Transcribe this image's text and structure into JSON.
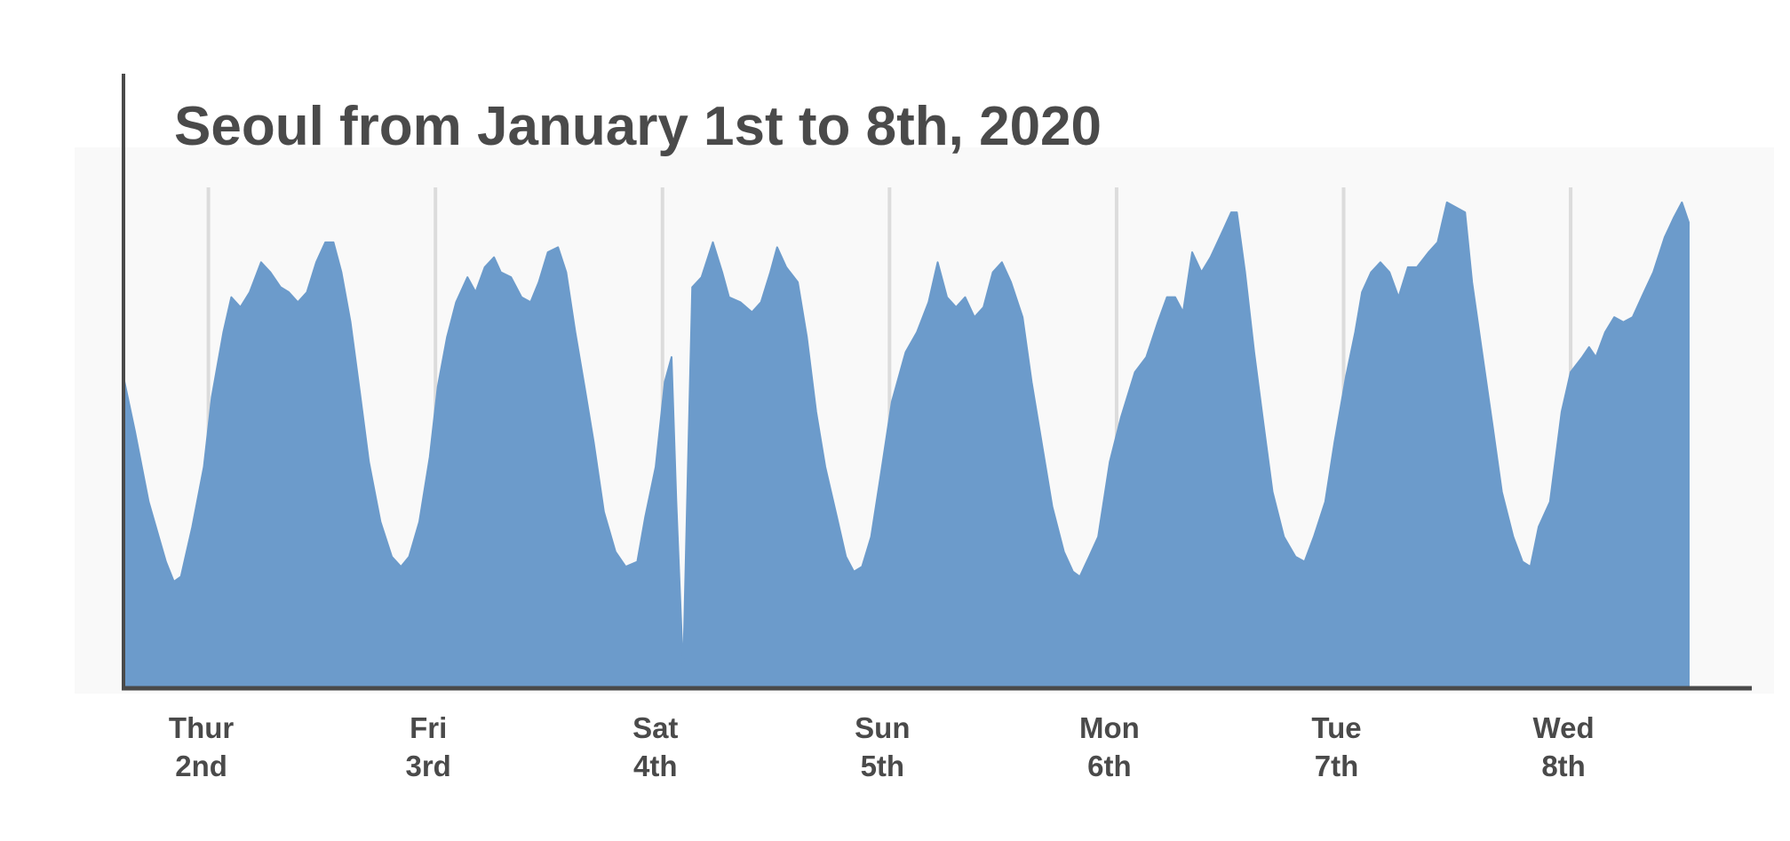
{
  "chart_data": {
    "type": "area",
    "title": "Seoul from January 1st to 8th, 2020",
    "color": "#6c9bcb",
    "grid": true,
    "xlim": [
      1.626,
      8.79
    ],
    "ylim": [
      0,
      100
    ],
    "xticks": [
      {
        "value": 2,
        "label": "Thur\n2nd"
      },
      {
        "value": 3,
        "label": "Fri\n3rd"
      },
      {
        "value": 4,
        "label": "Sat\n4th"
      },
      {
        "value": 5,
        "label": "Sun\n5th"
      },
      {
        "value": 6,
        "label": "Mon\n6th"
      },
      {
        "value": 7,
        "label": "Tue\n7th"
      },
      {
        "value": 8,
        "label": "Wed\n8th"
      }
    ],
    "x": [
      1.626,
      1.677,
      1.737,
      1.813,
      1.848,
      1.879,
      1.929,
      1.98,
      2.015,
      2.066,
      2.101,
      2.141,
      2.182,
      2.232,
      2.273,
      2.318,
      2.354,
      2.394,
      2.434,
      2.475,
      2.515,
      2.551,
      2.586,
      2.626,
      2.667,
      2.707,
      2.758,
      2.808,
      2.848,
      2.884,
      2.929,
      2.975,
      3.01,
      3.051,
      3.091,
      3.141,
      3.177,
      3.217,
      3.258,
      3.288,
      3.333,
      3.379,
      3.419,
      3.455,
      3.495,
      3.54,
      3.576,
      3.616,
      3.657,
      3.697,
      3.742,
      3.793,
      3.838,
      3.889,
      3.924,
      3.97,
      4.01,
      4.04,
      4.061,
      4.091,
      4.111,
      4.131,
      4.172,
      4.222,
      4.263,
      4.293,
      4.343,
      4.394,
      4.434,
      4.475,
      4.505,
      4.545,
      4.596,
      4.636,
      4.677,
      4.717,
      4.768,
      4.808,
      4.843,
      4.879,
      4.919,
      4.96,
      5.01,
      5.071,
      5.121,
      5.172,
      5.212,
      5.253,
      5.293,
      5.333,
      5.374,
      5.414,
      5.455,
      5.495,
      5.535,
      5.586,
      5.626,
      5.677,
      5.717,
      5.768,
      5.808,
      5.838,
      5.879,
      5.919,
      5.97,
      6.02,
      6.081,
      6.131,
      6.182,
      6.222,
      6.258,
      6.293,
      6.333,
      6.374,
      6.414,
      6.465,
      6.505,
      6.53,
      6.566,
      6.606,
      6.646,
      6.687,
      6.737,
      6.788,
      6.828,
      6.869,
      6.919,
      6.96,
      7.01,
      7.051,
      7.081,
      7.121,
      7.162,
      7.202,
      7.242,
      7.283,
      7.323,
      7.374,
      7.414,
      7.455,
      7.495,
      7.535,
      7.566,
      7.616,
      7.657,
      7.697,
      7.747,
      7.788,
      7.823,
      7.859,
      7.909,
      7.96,
      8.0,
      8.051,
      8.081,
      8.111,
      8.152,
      8.192,
      8.232,
      8.273,
      8.323,
      8.364,
      8.414,
      8.455,
      8.49,
      8.52
    ],
    "values": [
      62,
      51,
      37,
      25,
      21,
      22,
      32,
      44,
      58,
      71,
      78,
      76,
      79,
      85,
      83,
      80,
      79,
      77,
      79,
      85,
      89,
      89,
      83,
      73,
      59,
      45,
      33,
      26,
      24,
      26,
      33,
      46,
      60,
      70,
      77,
      82,
      79,
      84,
      86,
      83,
      82,
      78,
      77,
      81,
      87,
      88,
      83,
      71,
      60,
      49,
      35,
      27,
      24,
      25,
      34,
      44,
      61,
      66,
      37,
      3,
      42,
      80,
      82,
      89,
      83,
      78,
      77,
      75,
      77,
      83,
      88,
      84,
      81,
      70,
      55,
      44,
      34,
      26,
      23,
      24,
      30,
      42,
      57,
      67,
      71,
      77,
      85,
      78,
      76,
      78,
      74,
      76,
      83,
      85,
      81,
      74,
      61,
      47,
      36,
      27,
      23,
      22,
      26,
      30,
      45,
      54,
      63,
      66,
      73,
      78,
      78,
      75,
      87,
      83,
      86,
      91,
      95,
      95,
      83,
      67,
      53,
      39,
      30,
      26,
      25,
      30,
      37,
      49,
      62,
      71,
      79,
      83,
      85,
      83,
      78,
      84,
      84,
      87,
      89,
      97,
      96,
      95,
      81,
      65,
      52,
      39,
      30,
      25,
      24,
      32,
      37,
      55,
      63,
      66,
      68,
      66,
      71,
      74,
      73,
      74,
      79,
      83,
      90,
      94,
      97,
      93
    ]
  }
}
